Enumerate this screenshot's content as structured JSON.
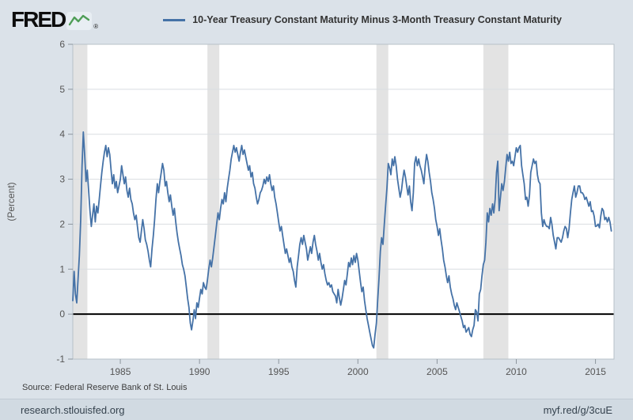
{
  "header": {
    "logo_text": "FRED",
    "registered_mark": "®",
    "logo_icon": "sparkline-chart-icon",
    "legend": {
      "label": "10-Year Treasury Constant Maturity Minus 3-Month Treasury Constant Maturity",
      "line_color": "#4572a7"
    }
  },
  "chart_data": {
    "type": "line",
    "title": "",
    "xlabel": "",
    "ylabel": "(Percent)",
    "xlim": [
      1982.0,
      2016.17
    ],
    "ylim": [
      -1,
      6
    ],
    "x_ticks": [
      1985,
      1990,
      1995,
      2000,
      2005,
      2010,
      2015
    ],
    "y_ticks": [
      -1,
      0,
      1,
      2,
      3,
      4,
      5,
      6
    ],
    "grid": "horizontal",
    "zero_line": true,
    "zero_line_color": "#000000",
    "gridline_color": "#d9dde1",
    "plot_background": "#ffffff",
    "band_color": "#e3e3e3",
    "recession_bands": [
      [
        1982.0,
        1982.92
      ],
      [
        1990.5,
        1991.25
      ],
      [
        2001.17,
        2001.92
      ],
      [
        2007.92,
        2009.5
      ]
    ],
    "series": [
      {
        "name": "10-Year Treasury Constant Maturity Minus 3-Month Treasury Constant Maturity",
        "color": "#4572a7",
        "frequency": "monthly",
        "start_year": 1982,
        "values": [
          0.3,
          0.95,
          0.45,
          0.25,
          0.8,
          1.3,
          2.1,
          3.3,
          4.05,
          3.55,
          2.95,
          3.2,
          2.75,
          2.3,
          1.95,
          2.2,
          2.45,
          2.05,
          2.4,
          2.25,
          2.55,
          2.85,
          3.15,
          3.4,
          3.6,
          3.75,
          3.5,
          3.7,
          3.55,
          3.2,
          2.9,
          3.1,
          2.8,
          2.95,
          2.7,
          2.85,
          3.0,
          3.3,
          3.1,
          2.9,
          3.05,
          2.75,
          2.6,
          2.8,
          2.55,
          2.45,
          2.25,
          2.1,
          2.2,
          1.95,
          1.7,
          1.6,
          1.85,
          2.1,
          1.9,
          1.65,
          1.55,
          1.4,
          1.2,
          1.05,
          1.45,
          1.75,
          2.1,
          2.55,
          2.9,
          2.7,
          2.95,
          3.15,
          3.35,
          3.2,
          2.85,
          2.95,
          2.7,
          2.5,
          2.65,
          2.4,
          2.2,
          2.35,
          2.05,
          1.8,
          1.6,
          1.45,
          1.3,
          1.1,
          1.0,
          0.85,
          0.6,
          0.35,
          0.15,
          -0.2,
          -0.35,
          -0.15,
          0.1,
          -0.1,
          0.25,
          0.15,
          0.35,
          0.55,
          0.45,
          0.7,
          0.6,
          0.55,
          0.75,
          1.0,
          1.2,
          1.05,
          1.25,
          1.5,
          1.75,
          2.0,
          2.25,
          2.1,
          2.35,
          2.55,
          2.45,
          2.7,
          2.5,
          2.8,
          3.0,
          3.2,
          3.45,
          3.6,
          3.75,
          3.6,
          3.7,
          3.55,
          3.4,
          3.6,
          3.75,
          3.55,
          3.65,
          3.5,
          3.35,
          3.2,
          3.3,
          3.05,
          3.15,
          2.9,
          2.8,
          2.6,
          2.45,
          2.55,
          2.7,
          2.75,
          2.85,
          3.0,
          2.9,
          3.05,
          2.95,
          3.1,
          2.9,
          2.75,
          2.85,
          2.6,
          2.45,
          2.25,
          2.05,
          1.85,
          1.95,
          1.75,
          1.55,
          1.35,
          1.45,
          1.3,
          1.15,
          1.25,
          1.05,
          0.95,
          0.75,
          0.6,
          1.05,
          1.3,
          1.55,
          1.7,
          1.55,
          1.75,
          1.6,
          1.45,
          1.2,
          1.35,
          1.5,
          1.35,
          1.6,
          1.75,
          1.55,
          1.4,
          1.2,
          1.35,
          1.15,
          1.0,
          1.1,
          0.9,
          0.75,
          0.65,
          0.7,
          0.6,
          0.65,
          0.5,
          0.45,
          0.4,
          0.25,
          0.55,
          0.35,
          0.2,
          0.35,
          0.55,
          0.75,
          0.65,
          0.9,
          1.15,
          1.05,
          1.25,
          1.1,
          1.3,
          1.15,
          1.35,
          1.2,
          0.95,
          0.7,
          0.5,
          0.6,
          0.3,
          0.1,
          -0.1,
          -0.25,
          -0.4,
          -0.55,
          -0.7,
          -0.75,
          -0.45,
          -0.2,
          0.3,
          0.8,
          1.4,
          1.7,
          1.55,
          2.0,
          2.4,
          2.8,
          3.35,
          3.25,
          3.1,
          3.45,
          3.3,
          3.5,
          3.3,
          3.0,
          2.8,
          2.6,
          2.75,
          3.0,
          3.2,
          3.05,
          2.85,
          2.65,
          2.85,
          2.5,
          2.3,
          2.7,
          3.35,
          3.5,
          3.3,
          3.45,
          3.3,
          3.2,
          3.05,
          2.9,
          3.3,
          3.55,
          3.4,
          3.15,
          2.95,
          2.7,
          2.55,
          2.35,
          2.1,
          1.95,
          1.75,
          1.9,
          1.65,
          1.45,
          1.2,
          1.05,
          0.85,
          0.7,
          0.85,
          0.6,
          0.45,
          0.35,
          0.2,
          0.1,
          0.25,
          0.15,
          0.05,
          -0.05,
          -0.15,
          -0.3,
          -0.25,
          -0.4,
          -0.35,
          -0.3,
          -0.45,
          -0.5,
          -0.35,
          -0.25,
          0.1,
          0.05,
          -0.15,
          0.45,
          0.55,
          0.85,
          1.1,
          1.2,
          1.6,
          2.25,
          2.05,
          2.35,
          2.2,
          2.45,
          2.25,
          2.55,
          3.15,
          3.4,
          2.3,
          2.6,
          2.9,
          2.75,
          2.95,
          3.25,
          3.55,
          3.4,
          3.6,
          3.35,
          3.4,
          3.3,
          3.5,
          3.7,
          3.6,
          3.7,
          3.75,
          3.3,
          3.1,
          2.9,
          2.55,
          2.6,
          2.4,
          2.65,
          3.15,
          3.3,
          3.45,
          3.35,
          3.4,
          3.1,
          2.95,
          2.9,
          2.25,
          1.95,
          2.1,
          2.0,
          1.95,
          1.95,
          1.9,
          2.15,
          2.0,
          1.75,
          1.6,
          1.45,
          1.7,
          1.7,
          1.65,
          1.6,
          1.7,
          1.85,
          1.95,
          1.9,
          1.7,
          1.9,
          2.25,
          2.55,
          2.7,
          2.85,
          2.6,
          2.7,
          2.85,
          2.85,
          2.7,
          2.7,
          2.65,
          2.55,
          2.6,
          2.5,
          2.4,
          2.5,
          2.28,
          2.3,
          2.18,
          1.95,
          1.96,
          2.0,
          1.92,
          2.18,
          2.35,
          2.3,
          2.1,
          2.15,
          2.05,
          2.15,
          2.05,
          1.85
        ]
      }
    ]
  },
  "footer": {
    "source": "Source: Federal Reserve Bank of St. Louis",
    "site": "research.stlouisfed.org",
    "short_url": "myf.red/g/3cuE"
  }
}
